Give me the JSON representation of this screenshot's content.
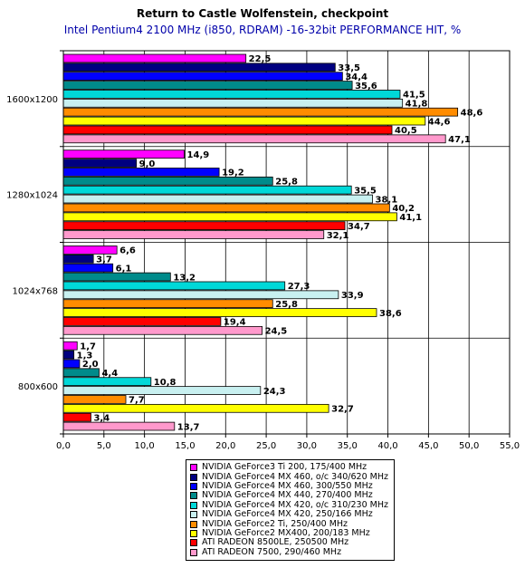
{
  "chart_data": {
    "type": "bar",
    "orientation": "horizontal",
    "title": "Return to Castle Wolfenstein, checkpoint",
    "subtitle": "Intel Pentium4 2100 MHz (i850, RDRAM) -16-32bit PERFORMANCE HIT, %",
    "xlabel": "",
    "ylabel": "",
    "xlim": [
      0,
      55
    ],
    "x_ticks": [
      "0,0",
      "5,0",
      "10,0",
      "15,0",
      "20,0",
      "25,0",
      "30,0",
      "35,0",
      "40,0",
      "45,0",
      "50,0",
      "55,0"
    ],
    "grid": true,
    "legend_position": "bottom",
    "categories": [
      "1600x1200",
      "1280x1024",
      "1024x768",
      "800x600"
    ],
    "series": [
      {
        "name": "NVIDIA GeForce3 Ti 200, 175/400 MHz",
        "color": "#ff00ff",
        "values": [
          22.5,
          14.9,
          6.6,
          1.7
        ],
        "labels": [
          "22,5",
          "14,9",
          "6,6",
          "1,7"
        ]
      },
      {
        "name": "NVIDIA GeForce4 MX 460, o/c 340/620 MHz",
        "color": "#000080",
        "values": [
          33.5,
          9.0,
          3.7,
          1.3
        ],
        "labels": [
          "33,5",
          "9,0",
          "3,7",
          "1,3"
        ]
      },
      {
        "name": "NVIDIA GeForce4 MX 460, 300/550 MHz",
        "color": "#0000ff",
        "values": [
          34.4,
          19.2,
          6.1,
          2.0
        ],
        "labels": [
          "34,4",
          "19,2",
          "6,1",
          "2,0"
        ]
      },
      {
        "name": "NVIDIA GeForce4 MX 440, 270/400 MHz",
        "color": "#008b8b",
        "values": [
          35.6,
          25.8,
          13.2,
          4.4
        ],
        "labels": [
          "35,6",
          "25,8",
          "13,2",
          "4,4"
        ]
      },
      {
        "name": "NVIDIA GeForce4 MX 420, o/c 310/230 MHz",
        "color": "#00d8d8",
        "values": [
          41.5,
          35.5,
          27.3,
          10.8
        ],
        "labels": [
          "41,5",
          "35,5",
          "27,3",
          "10,8"
        ]
      },
      {
        "name": "NVIDIA GeForce4 MX 420, 250/166 MHz",
        "color": "#c8f0f0",
        "values": [
          41.8,
          38.1,
          33.9,
          24.3
        ],
        "labels": [
          "41,8",
          "38,1",
          "33,9",
          "24,3"
        ]
      },
      {
        "name": "NVIDIA GeForce2 Ti, 250/400 MHz",
        "color": "#ff8c00",
        "values": [
          48.6,
          40.2,
          25.8,
          7.7
        ],
        "labels": [
          "48,6",
          "40,2",
          "25,8",
          "7,7"
        ]
      },
      {
        "name": "NVIDIA GeForce2 MX400, 200/183 MHz",
        "color": "#ffff00",
        "values": [
          44.6,
          41.1,
          38.6,
          32.7
        ],
        "labels": [
          "44,6",
          "41,1",
          "38,6",
          "32,7"
        ]
      },
      {
        "name": "ATI RADEON 8500LE, 250500 MHz",
        "color": "#ff0000",
        "values": [
          40.5,
          34.7,
          19.4,
          3.4
        ],
        "labels": [
          "40,5",
          "34,7",
          "19,4",
          "3,4"
        ]
      },
      {
        "name": "ATI RADEON 7500, 290/460 MHz",
        "color": "#ff99cc",
        "values": [
          47.1,
          32.1,
          24.5,
          13.7
        ],
        "labels": [
          "47,1",
          "32,1",
          "24,5",
          "13,7"
        ]
      }
    ]
  }
}
